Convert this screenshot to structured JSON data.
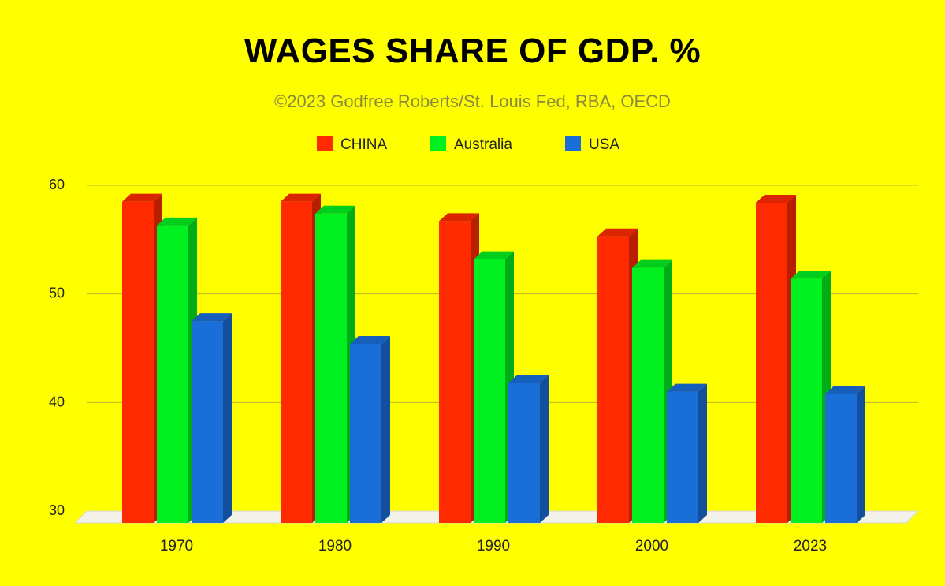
{
  "chart_data": {
    "type": "bar",
    "title": "WAGES SHARE OF GDP. %",
    "subtitle": "©2023 Godfree Roberts/St. Louis Fed, RBA, OECD",
    "categories": [
      "1970",
      "1980",
      "1990",
      "2000",
      "2023"
    ],
    "series": [
      {
        "name": "CHINA",
        "color": "#ff2a00",
        "values": [
          58.5,
          58.5,
          56.7,
          55.3,
          58.4
        ]
      },
      {
        "name": "Australia",
        "color": "#00f020",
        "values": [
          56.3,
          57.4,
          53.2,
          52.4,
          51.4
        ]
      },
      {
        "name": "USA",
        "color": "#1a6ed8",
        "values": [
          47.5,
          45.4,
          41.8,
          41.0,
          40.8
        ]
      }
    ],
    "yticks": [
      30,
      40,
      50,
      60
    ],
    "ylim": [
      30,
      60
    ],
    "xlabel": "",
    "ylabel": "",
    "grid": true,
    "legend_position": "top-center",
    "style": "3d-bars"
  }
}
